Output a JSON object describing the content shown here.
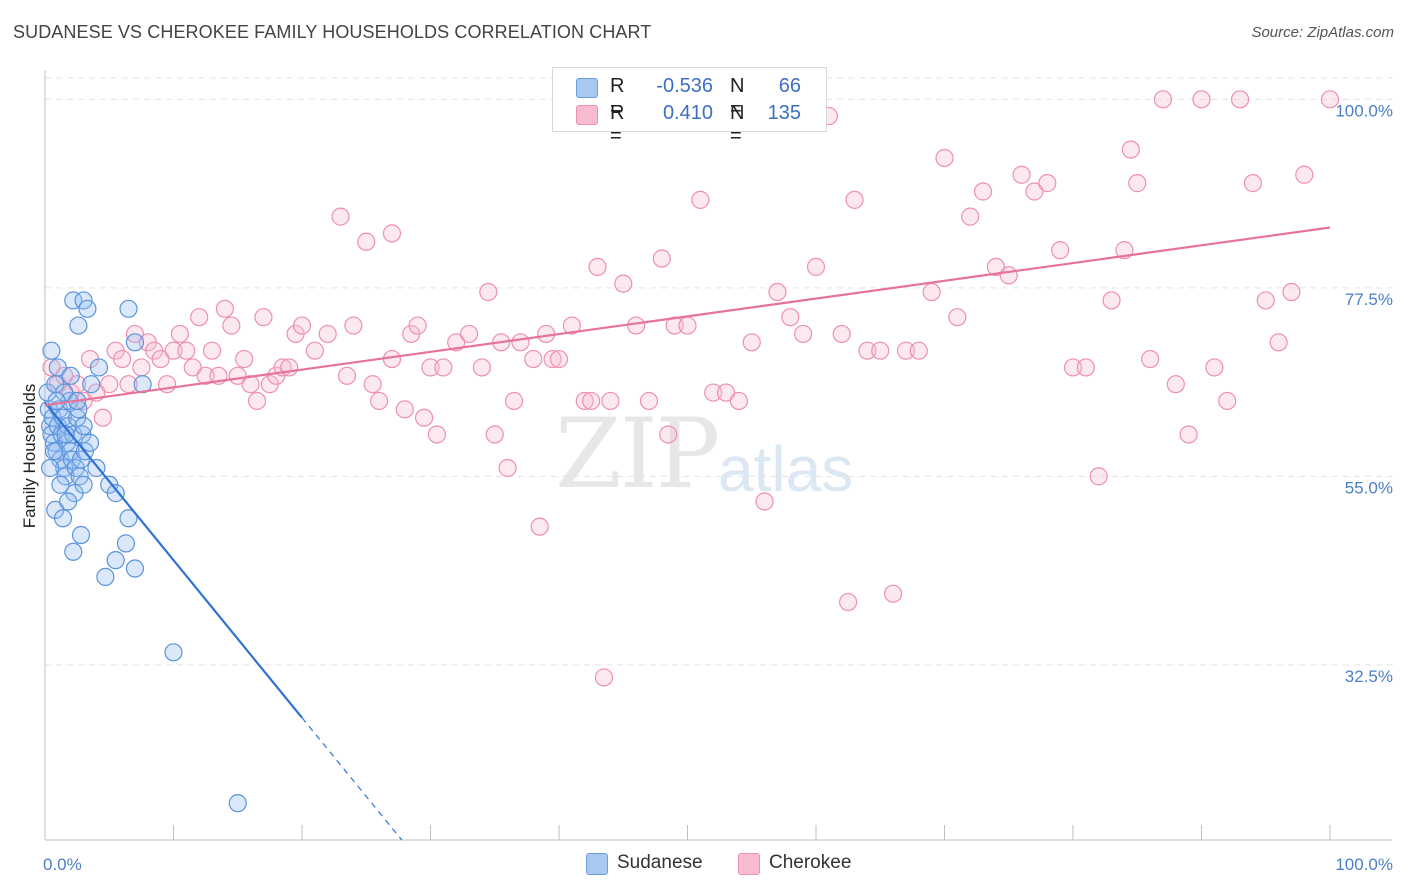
{
  "header": {
    "title": "SUDANESE VS CHEROKEE FAMILY HOUSEHOLDS CORRELATION CHART",
    "source": "Source: ZipAtlas.com"
  },
  "watermark": {
    "zip": "ZIP",
    "atlas": "atlas"
  },
  "legend": {
    "rows": [
      {
        "r_label": "R =",
        "r_value": "-0.536",
        "n_label": "N =",
        "n_value": "66",
        "color": "#a9c8f0",
        "border": "#6a9ee0"
      },
      {
        "r_label": "R =",
        "r_value": "0.410",
        "n_label": "N = ",
        "n_value": "135",
        "color": "#f7bcd0",
        "border": "#ee8fb0"
      }
    ]
  },
  "bottom_legend": [
    {
      "label": "Sudanese",
      "color": "#a9c8f0",
      "border": "#6a9ee0"
    },
    {
      "label": "Cherokee",
      "color": "#f7bcd0",
      "border": "#ee8fb0"
    }
  ],
  "chart_data": {
    "type": "scatter",
    "title": "SUDANESE VS CHEROKEE FAMILY HOUSEHOLDS CORRELATION CHART",
    "xlabel": "",
    "ylabel": "Family Households",
    "xlim": [
      0,
      100
    ],
    "ylim": [
      11.6,
      103.5
    ],
    "x_tick_labels": [
      "0.0%",
      "100.0%"
    ],
    "y_ticks": [
      32.5,
      55.0,
      77.5,
      100.0
    ],
    "y_tick_labels": [
      "32.5%",
      "55.0%",
      "77.5%",
      "100.0%"
    ],
    "grid": true,
    "series": [
      {
        "name": "Sudanese",
        "color": "#5b93dd",
        "fill": "rgba(150,190,240,0.35)",
        "trend": {
          "x0": 0,
          "y0": 63.8,
          "x1": 20,
          "y1": 26.2,
          "dash_to_x": 28
        },
        "points": [
          [
            0.2,
            65
          ],
          [
            0.3,
            63
          ],
          [
            0.4,
            61
          ],
          [
            0.5,
            60
          ],
          [
            0.6,
            62
          ],
          [
            0.7,
            59
          ],
          [
            0.8,
            66
          ],
          [
            0.9,
            58
          ],
          [
            1.0,
            61
          ],
          [
            1.1,
            63
          ],
          [
            1.2,
            57
          ],
          [
            1.3,
            60
          ],
          [
            1.4,
            62
          ],
          [
            1.5,
            56
          ],
          [
            1.6,
            55
          ],
          [
            1.7,
            59
          ],
          [
            1.8,
            61
          ],
          [
            1.9,
            64
          ],
          [
            2.0,
            58
          ],
          [
            2.1,
            57
          ],
          [
            2.2,
            60
          ],
          [
            2.3,
            53
          ],
          [
            2.4,
            56
          ],
          [
            2.5,
            62
          ],
          [
            2.6,
            63
          ],
          [
            2.7,
            55
          ],
          [
            2.8,
            57
          ],
          [
            2.9,
            60
          ],
          [
            3.0,
            54
          ],
          [
            3.1,
            58
          ],
          [
            0.5,
            70
          ],
          [
            1.0,
            68
          ],
          [
            1.5,
            65
          ],
          [
            2.0,
            67
          ],
          [
            2.5,
            64
          ],
          [
            3.0,
            61
          ],
          [
            3.5,
            59
          ],
          [
            4.0,
            56
          ],
          [
            0.8,
            51
          ],
          [
            1.4,
            50
          ],
          [
            2.2,
            46
          ],
          [
            2.8,
            48
          ],
          [
            3.6,
            66
          ],
          [
            4.2,
            68
          ],
          [
            5.0,
            54
          ],
          [
            5.5,
            53
          ],
          [
            6.5,
            50
          ],
          [
            7.0,
            71
          ],
          [
            2.2,
            76
          ],
          [
            3.0,
            76
          ],
          [
            3.3,
            75
          ],
          [
            6.5,
            75
          ],
          [
            2.6,
            73
          ],
          [
            7.6,
            66
          ],
          [
            4.7,
            43
          ],
          [
            5.5,
            45
          ],
          [
            6.3,
            47
          ],
          [
            7.0,
            44
          ],
          [
            10.0,
            34
          ],
          [
            15.0,
            16
          ],
          [
            0.4,
            56
          ],
          [
            0.7,
            58
          ],
          [
            1.2,
            54
          ],
          [
            1.8,
            52
          ],
          [
            0.9,
            64
          ],
          [
            1.6,
            60
          ]
        ]
      },
      {
        "name": "Cherokee",
        "color": "#ee8fb0",
        "fill": "rgba(247,188,208,0.35)",
        "trend": {
          "x0": 0,
          "y0": 63.5,
          "x1": 100,
          "y1": 84.7
        },
        "points": [
          [
            0.5,
            68
          ],
          [
            1.0,
            66
          ],
          [
            1.5,
            67
          ],
          [
            2.0,
            65
          ],
          [
            2.5,
            66
          ],
          [
            3.0,
            64
          ],
          [
            3.5,
            69
          ],
          [
            4.0,
            65
          ],
          [
            4.5,
            62
          ],
          [
            5.0,
            66
          ],
          [
            5.5,
            70
          ],
          [
            6.0,
            69
          ],
          [
            6.5,
            66
          ],
          [
            7.0,
            72
          ],
          [
            7.5,
            68
          ],
          [
            8.0,
            71
          ],
          [
            8.5,
            70
          ],
          [
            9.0,
            69
          ],
          [
            9.5,
            66
          ],
          [
            10.0,
            70
          ],
          [
            10.5,
            72
          ],
          [
            11.0,
            70
          ],
          [
            11.5,
            68
          ],
          [
            12.0,
            74
          ],
          [
            12.5,
            67
          ],
          [
            13.0,
            70
          ],
          [
            13.5,
            67
          ],
          [
            14.0,
            75
          ],
          [
            14.5,
            73
          ],
          [
            15.0,
            67
          ],
          [
            15.5,
            69
          ],
          [
            16.0,
            66
          ],
          [
            16.5,
            64
          ],
          [
            17.0,
            74
          ],
          [
            17.5,
            66
          ],
          [
            18.0,
            67
          ],
          [
            18.5,
            68
          ],
          [
            19.0,
            68
          ],
          [
            19.5,
            72
          ],
          [
            20.0,
            73
          ],
          [
            21.0,
            70
          ],
          [
            22.0,
            72
          ],
          [
            23.0,
            86
          ],
          [
            23.5,
            67
          ],
          [
            24.0,
            73
          ],
          [
            25.0,
            83
          ],
          [
            25.5,
            66
          ],
          [
            26.0,
            64
          ],
          [
            27.0,
            69
          ],
          [
            28.0,
            63
          ],
          [
            28.5,
            72
          ],
          [
            29.0,
            73
          ],
          [
            30.0,
            68
          ],
          [
            30.5,
            60
          ],
          [
            31.0,
            68
          ],
          [
            32.0,
            71
          ],
          [
            33.0,
            72
          ],
          [
            34.0,
            68
          ],
          [
            34.5,
            77
          ],
          [
            35.0,
            60
          ],
          [
            35.5,
            71
          ],
          [
            36.0,
            56
          ],
          [
            37.0,
            71
          ],
          [
            38.0,
            69
          ],
          [
            38.5,
            49
          ],
          [
            39.0,
            72
          ],
          [
            39.5,
            69
          ],
          [
            40.0,
            69
          ],
          [
            41.0,
            73
          ],
          [
            42.0,
            64
          ],
          [
            43.0,
            80
          ],
          [
            43.5,
            31
          ],
          [
            44.0,
            64
          ],
          [
            45.0,
            78
          ],
          [
            46.0,
            73
          ],
          [
            47.0,
            64
          ],
          [
            48.0,
            81
          ],
          [
            48.5,
            60
          ],
          [
            49.0,
            73
          ],
          [
            50.0,
            73
          ],
          [
            51.0,
            88
          ],
          [
            52.0,
            65
          ],
          [
            53.0,
            65
          ],
          [
            54.0,
            64
          ],
          [
            55.0,
            71
          ],
          [
            56.0,
            52
          ],
          [
            57.0,
            77
          ],
          [
            58.0,
            74
          ],
          [
            59.0,
            72
          ],
          [
            60.0,
            80
          ],
          [
            61.0,
            98
          ],
          [
            62.0,
            72
          ],
          [
            63.0,
            88
          ],
          [
            64.0,
            70
          ],
          [
            65.0,
            70
          ],
          [
            66.0,
            41
          ],
          [
            67.0,
            70
          ],
          [
            68.0,
            70
          ],
          [
            69.0,
            77
          ],
          [
            70.0,
            93
          ],
          [
            71.0,
            74
          ],
          [
            72.0,
            86
          ],
          [
            73.0,
            89
          ],
          [
            74.0,
            80
          ],
          [
            75.0,
            79
          ],
          [
            76.0,
            91
          ],
          [
            77.0,
            89
          ],
          [
            78.0,
            90
          ],
          [
            79.0,
            82
          ],
          [
            80.0,
            68
          ],
          [
            81.0,
            68
          ],
          [
            82.0,
            55
          ],
          [
            83.0,
            76
          ],
          [
            84.0,
            82
          ],
          [
            84.5,
            94
          ],
          [
            85.0,
            90
          ],
          [
            86.0,
            69
          ],
          [
            87.0,
            100
          ],
          [
            88.0,
            66
          ],
          [
            89.0,
            60
          ],
          [
            90.0,
            100
          ],
          [
            91.0,
            68
          ],
          [
            92.0,
            64
          ],
          [
            93.0,
            100
          ],
          [
            94.0,
            90
          ],
          [
            95.0,
            76
          ],
          [
            96.0,
            71
          ],
          [
            97.0,
            77
          ],
          [
            98.0,
            91
          ],
          [
            100.0,
            100
          ],
          [
            27.0,
            84
          ],
          [
            29.5,
            62
          ],
          [
            36.5,
            64
          ],
          [
            42.5,
            64
          ],
          [
            62.5,
            40
          ]
        ]
      }
    ]
  }
}
